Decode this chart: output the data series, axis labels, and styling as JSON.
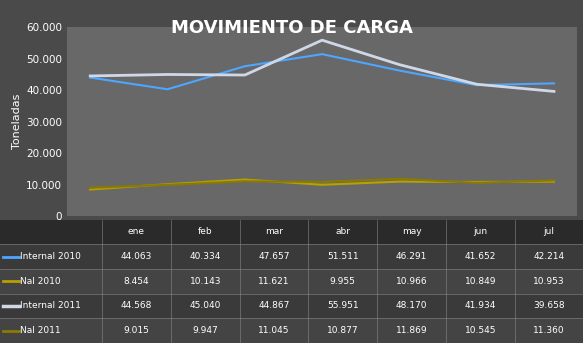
{
  "title": "MOVIMIENTO DE CARGA",
  "ylabel": "Toneladas",
  "months": [
    "ene",
    "feb",
    "mar",
    "abr",
    "may",
    "jun",
    "jul"
  ],
  "series": {
    "Internal 2010": {
      "values": [
        44063,
        40334,
        47657,
        51511,
        46291,
        41652,
        42214
      ],
      "color": "#4da6ff",
      "linewidth": 1.5
    },
    "Nal 2010": {
      "values": [
        8454,
        10143,
        11621,
        9955,
        10966,
        10849,
        10953
      ],
      "color": "#b8a000",
      "linewidth": 1.5
    },
    "Internal 2011": {
      "values": [
        44568,
        45040,
        44867,
        55951,
        48170,
        41934,
        39658
      ],
      "color": "#d0d8e8",
      "linewidth": 2.0
    },
    "Nal 2011": {
      "values": [
        9015,
        9947,
        11045,
        10877,
        11869,
        10545,
        11360
      ],
      "color": "#8b7a00",
      "linewidth": 1.5
    }
  },
  "ylim": [
    0,
    60000
  ],
  "yticks": [
    0,
    10000,
    20000,
    30000,
    40000,
    50000,
    60000
  ],
  "background_color": "#4a4a4a",
  "plot_bg_color": "#686868",
  "table_bg_dark": "#2a2a2a",
  "table_row_odd": "#3a3a3a",
  "table_row_even": "#444444",
  "table_line_color": "#888888",
  "text_color": "#ffffff",
  "title_fontsize": 13,
  "axis_label_fontsize": 8,
  "tick_fontsize": 7.5,
  "table_fontsize": 6.5,
  "col_widths": [
    0.175,
    0.118,
    0.118,
    0.118,
    0.118,
    0.118,
    0.118,
    0.117
  ]
}
